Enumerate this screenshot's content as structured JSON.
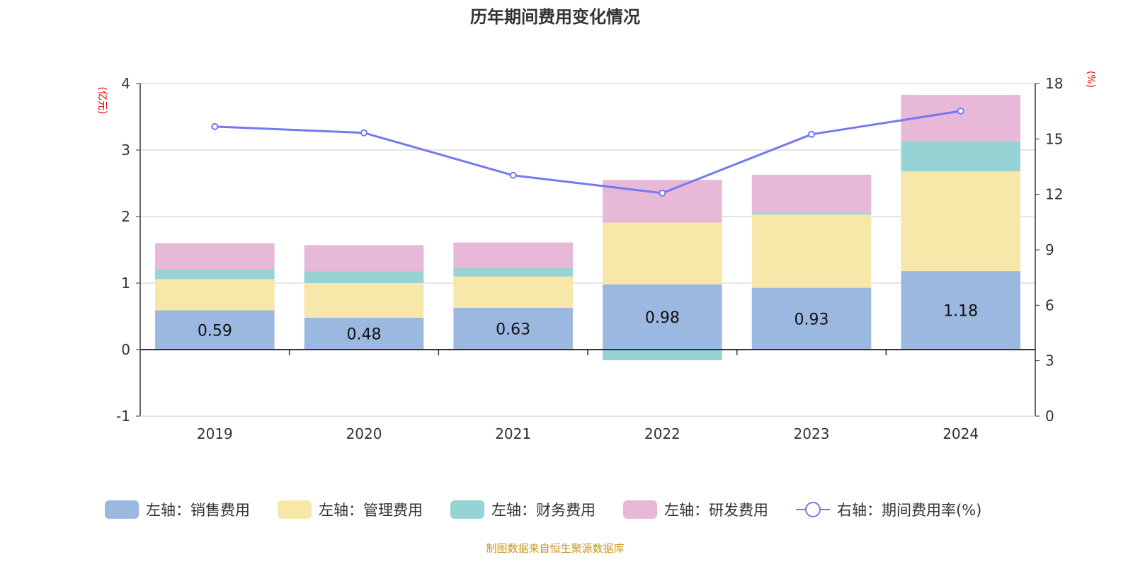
{
  "chart_data": {
    "type": "bar",
    "title": "历年期间费用变化情况",
    "left_unit": "(亿元)",
    "right_unit": "(%)",
    "categories": [
      "2019",
      "2020",
      "2021",
      "2022",
      "2023",
      "2024"
    ],
    "left_ylim": [
      -1,
      4
    ],
    "left_ticks": [
      "4",
      "3",
      "2",
      "1",
      "0",
      "-1"
    ],
    "right_ylim": [
      0,
      18
    ],
    "right_ticks": [
      "18",
      "15",
      "12",
      "9",
      "6",
      "3",
      "0"
    ],
    "grid": true,
    "legend_position": "bottom",
    "series": [
      {
        "name": "左轴：销售费用",
        "type": "bar",
        "axis": "left",
        "color": "#9bb8e0",
        "values": [
          0.59,
          0.48,
          0.63,
          0.98,
          0.93,
          1.18
        ],
        "labels": [
          "0.59",
          "0.48",
          "0.63",
          "0.98",
          "0.93",
          "1.18"
        ]
      },
      {
        "name": "左轴：管理费用",
        "type": "bar",
        "axis": "left",
        "color": "#f7e7a8",
        "values": [
          0.47,
          0.52,
          0.47,
          0.93,
          1.1,
          1.5
        ]
      },
      {
        "name": "左轴：财务费用",
        "type": "bar",
        "axis": "left",
        "color": "#96d3d4",
        "values": [
          0.15,
          0.18,
          0.13,
          -0.16,
          0.03,
          0.45
        ]
      },
      {
        "name": "左轴：研发费用",
        "type": "bar",
        "axis": "left",
        "color": "#e7b8d8",
        "values": [
          0.39,
          0.39,
          0.38,
          0.64,
          0.57,
          0.7
        ]
      },
      {
        "name": "右轴：期间费用率(%)",
        "type": "line",
        "axis": "right",
        "color": "#7579f0",
        "values": [
          15.67,
          15.33,
          13.03,
          12.07,
          15.25,
          16.51
        ]
      }
    ]
  },
  "source": "制图数据来自恒生聚源数据库"
}
